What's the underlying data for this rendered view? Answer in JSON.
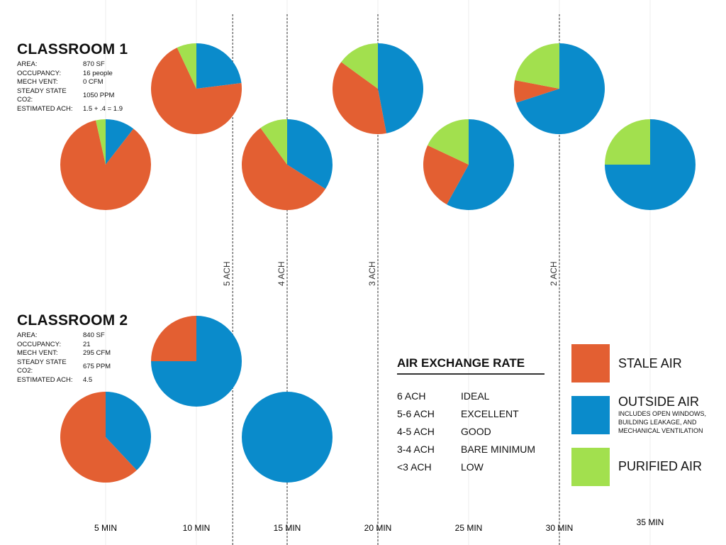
{
  "colors": {
    "stale": "#E35F32",
    "outside": "#0A8BCB",
    "purified": "#A2E04E"
  },
  "classroom1": {
    "title": "CLASSROOM 1",
    "rows": [
      {
        "k": "AREA:",
        "v": "870 SF"
      },
      {
        "k": "OCCUPANCY:",
        "v": "16 people"
      },
      {
        "k": "MECH VENT:",
        "v": "0 CFM"
      },
      {
        "k": "STEADY STATE CO2:",
        "v": "1050 PPM"
      },
      {
        "k": "ESTIMATED ACH:",
        "v": "1.5 + .4 = 1.9"
      }
    ]
  },
  "classroom2": {
    "title": "CLASSROOM 2",
    "rows": [
      {
        "k": "AREA:",
        "v": "840 SF"
      },
      {
        "k": "OCCUPANCY:",
        "v": "21"
      },
      {
        "k": "MECH VENT:",
        "v": "295 CFM"
      },
      {
        "k": "STEADY STATE CO2:",
        "v": "675 PPM"
      },
      {
        "k": "ESTIMATED ACH:",
        "v": "4.5"
      }
    ]
  },
  "legend": {
    "title": "AIR EXCHANGE RATE",
    "rates": [
      {
        "a": "6 ACH",
        "b": "IDEAL"
      },
      {
        "a": "5-6 ACH",
        "b": "EXCELLENT"
      },
      {
        "a": "4-5 ACH",
        "b": "GOOD"
      },
      {
        "a": "3-4 ACH",
        "b": "BARE MINIMUM"
      },
      {
        "a": "<3 ACH",
        "b": "LOW"
      }
    ],
    "stale": "STALE AIR",
    "outside": "OUTSIDE AIR",
    "outside_note": [
      "INCLUDES OPEN WINDOWS,",
      "BUILDING LEAKAGE, AND",
      "MECHANICAL VENTILATION"
    ],
    "purified": "PURIFIED AIR"
  },
  "chart_data": {
    "type": "pie",
    "x_ticks": [
      "5 MIN",
      "10 MIN",
      "15 MIN",
      "20 MIN",
      "25 MIN",
      "30 MIN",
      "35 MIN"
    ],
    "x_minutes": [
      5,
      10,
      15,
      20,
      25,
      30,
      35
    ],
    "ach_markers": [
      {
        "minute": 12,
        "label": "5 ACH"
      },
      {
        "minute": 15,
        "label": "4 ACH"
      },
      {
        "minute": 20,
        "label": "3 ACH"
      },
      {
        "minute": 30,
        "label": "2 ACH"
      }
    ],
    "series": [
      {
        "name": "CLASSROOM 1",
        "pies": [
          {
            "minute": 5,
            "outside": 10.5,
            "stale": 86,
            "purified": 3.5
          },
          {
            "minute": 10,
            "outside": 23,
            "stale": 70,
            "purified": 7
          },
          {
            "minute": 15,
            "outside": 34,
            "stale": 56,
            "purified": 10
          },
          {
            "minute": 20,
            "outside": 47,
            "stale": 38,
            "purified": 15
          },
          {
            "minute": 25,
            "outside": 58,
            "stale": 24,
            "purified": 18
          },
          {
            "minute": 30,
            "outside": 70,
            "stale": 8,
            "purified": 22
          },
          {
            "minute": 35,
            "outside": 75,
            "stale": 0,
            "purified": 25
          }
        ]
      },
      {
        "name": "CLASSROOM 2",
        "pies": [
          {
            "minute": 5,
            "outside": 38,
            "stale": 62,
            "purified": 0
          },
          {
            "minute": 10,
            "outside": 75,
            "stale": 25,
            "purified": 0
          },
          {
            "minute": 15,
            "outside": 100,
            "stale": 0,
            "purified": 0
          }
        ]
      }
    ]
  }
}
